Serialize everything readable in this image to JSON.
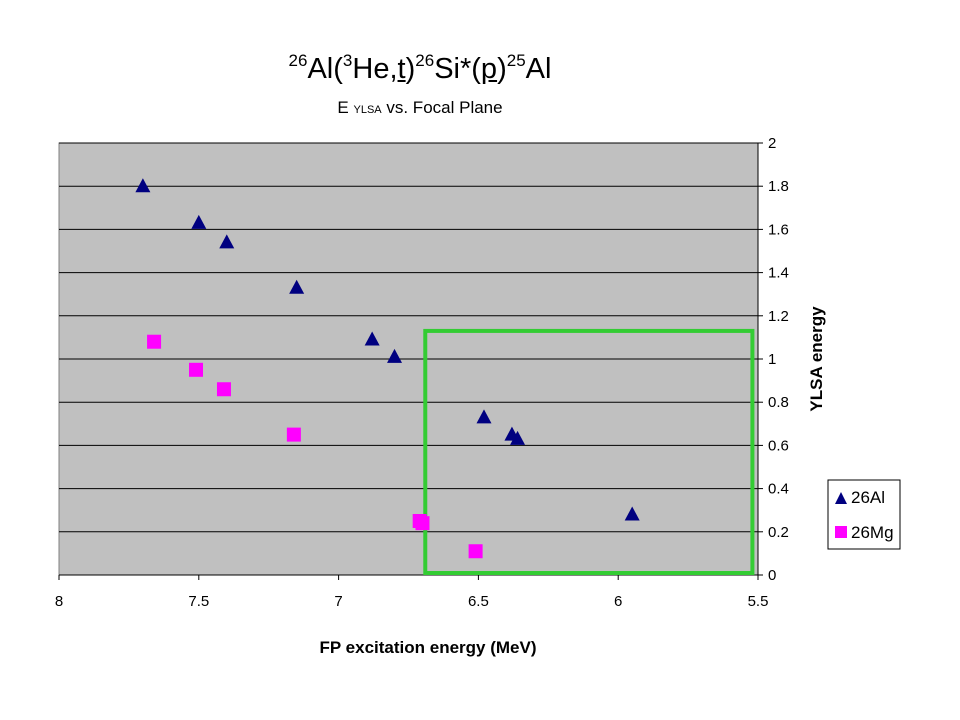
{
  "chart_data": {
    "type": "scatter",
    "title": {
      "sup1": "26",
      "part1": "Al(",
      "sup2": "3",
      "part2": "He,",
      "t": "t",
      "part3": ")",
      "sup3": "26",
      "part4": "Si*(",
      "p": "p",
      "part5": ")",
      "sup4": "25",
      "part6": "Al"
    },
    "subtitle": {
      "e": "E",
      "sub": "YLSA",
      "rest": "vs.  Focal Plane"
    },
    "xlabel": "FP excitation energy (MeV)",
    "ylabel": "YLSA energy",
    "xlim": [
      8,
      5.5
    ],
    "ylim": [
      0,
      2
    ],
    "x_ticks": [
      "8",
      "7.5",
      "7",
      "6.5",
      "6",
      "5.5"
    ],
    "y_ticks": [
      "0",
      "0.2",
      "0.4",
      "0.6",
      "0.8",
      "1",
      "1.2",
      "1.4",
      "1.6",
      "1.8",
      "2"
    ],
    "grid": "horizontal",
    "legend_position": "right",
    "background": "#c0c0c0",
    "highlight_box": {
      "x": [
        6.69,
        5.52
      ],
      "y": [
        0,
        1.13
      ],
      "color": "#33cc33"
    },
    "series": [
      {
        "name": "26Al",
        "marker": "triangle",
        "color": "#000080",
        "points": [
          [
            7.7,
            1.8
          ],
          [
            7.5,
            1.63
          ],
          [
            7.4,
            1.54
          ],
          [
            7.15,
            1.33
          ],
          [
            6.88,
            1.09
          ],
          [
            6.8,
            1.01
          ],
          [
            6.48,
            0.73
          ],
          [
            6.38,
            0.65
          ],
          [
            6.36,
            0.63
          ],
          [
            5.95,
            0.28
          ]
        ]
      },
      {
        "name": "26Mg",
        "marker": "square",
        "color": "#ff00ff",
        "points": [
          [
            7.66,
            1.08
          ],
          [
            7.51,
            0.95
          ],
          [
            7.41,
            0.86
          ],
          [
            7.16,
            0.65
          ],
          [
            6.71,
            0.25
          ],
          [
            6.7,
            0.24
          ],
          [
            6.51,
            0.11
          ]
        ]
      }
    ]
  }
}
